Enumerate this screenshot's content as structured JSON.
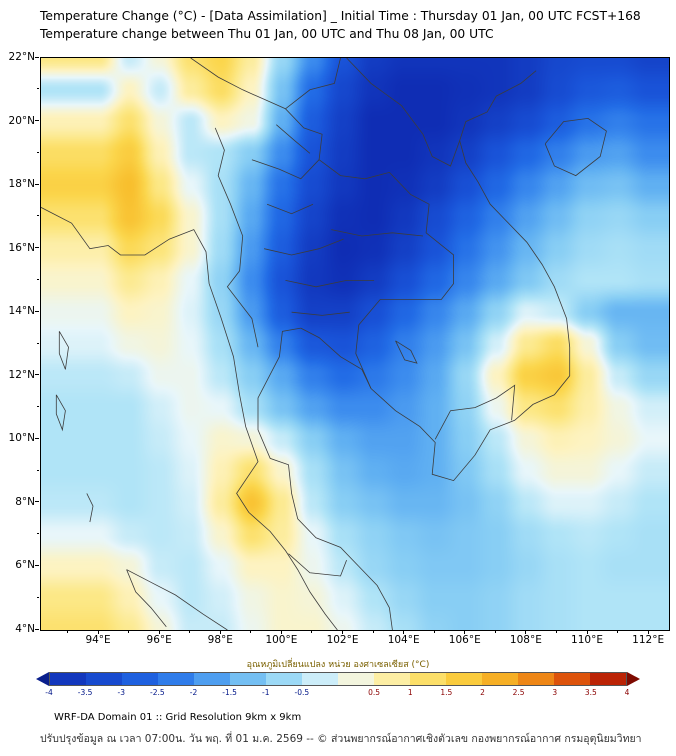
{
  "header": {
    "title_line1": "Temperature Change (°C) - [Data Assimilation] _ Initial Time : Thursday 01 Jan, 00 UTC FCST+168",
    "title_line2": "Temperature change between Thu 01 Jan, 00 UTC and Thu 08 Jan, 00 UTC"
  },
  "footer": {
    "line1": "WRF-DA Domain 01 :: Grid Resolution 9km x 9km",
    "line2": "ปรับปรุงข้อมูล ณ เวลา 07:00น. วัน พฤ. ที่ 01 ม.ค. 2569 -- © ส่วนพยากรณ์อากาศเชิงตัวเลข กองพยากรณ์อากาศ กรมอุตุนิยมวิทยา"
  },
  "chart_data": {
    "type": "heatmap",
    "title": "Temperature change between Thu 01 Jan, 00 UTC and Thu 08 Jan, 00 UTC",
    "xlabel": "",
    "ylabel": "",
    "lon_range": [
      92.1,
      112.65
    ],
    "lat_range": [
      4,
      22
    ],
    "x_tick_values": [
      94,
      96,
      98,
      100,
      102,
      104,
      106,
      108,
      110,
      112
    ],
    "x_tick_labels": [
      "94°E",
      "96°E",
      "98°E",
      "100°E",
      "102°E",
      "104°E",
      "106°E",
      "108°E",
      "110°E",
      "112°E"
    ],
    "y_tick_values": [
      22,
      20,
      18,
      16,
      14,
      12,
      10,
      8,
      6,
      4
    ],
    "y_tick_labels": [
      "22°N",
      "20°N",
      "18°N",
      "16°N",
      "14°N",
      "12°N",
      "10°N",
      "8°N",
      "6°N",
      "4°N"
    ],
    "grid": {
      "lons": [
        94,
        95,
        96,
        97,
        98,
        99,
        100,
        101,
        102,
        103,
        104,
        105,
        106,
        107,
        108,
        109,
        110,
        111,
        112
      ],
      "lats": [
        22,
        21,
        20,
        19,
        18,
        17,
        16,
        15,
        14,
        13,
        12,
        11,
        10,
        9,
        8,
        7,
        6,
        5,
        4
      ],
      "values": [
        [
          1.0,
          -0.3,
          0.3,
          1.2,
          1.5,
          0.8,
          -0.8,
          -2.0,
          -3.0,
          -3.6,
          -3.8,
          -3.8,
          -3.8,
          -3.8,
          -3.6,
          -3.3,
          -3.2,
          -3.2,
          -3.4
        ],
        [
          -0.5,
          0.5,
          -0.3,
          0.8,
          1.3,
          0.5,
          -1.2,
          -2.5,
          -3.3,
          -3.8,
          -4.0,
          -4.0,
          -3.9,
          -3.8,
          -3.6,
          -3.2,
          -2.9,
          -2.8,
          -3.0
        ],
        [
          0.6,
          1.2,
          0.3,
          -0.4,
          0.5,
          0.2,
          -1.5,
          -2.8,
          -3.5,
          -4.0,
          -4.0,
          -4.0,
          -3.8,
          -3.5,
          -3.2,
          -2.8,
          -2.4,
          -2.2,
          -2.4
        ],
        [
          1.3,
          1.7,
          0.6,
          -0.4,
          -0.5,
          -1.0,
          -2.0,
          -3.0,
          -3.6,
          -4.0,
          -4.0,
          -3.8,
          -3.5,
          -3.0,
          -2.6,
          -2.2,
          -1.8,
          -1.7,
          -2.0
        ],
        [
          1.6,
          2.0,
          1.0,
          0.0,
          -0.6,
          -1.4,
          -2.4,
          -3.2,
          -3.7,
          -4.0,
          -3.9,
          -3.6,
          -3.1,
          -2.6,
          -2.1,
          -1.7,
          -1.3,
          -1.2,
          -1.5
        ],
        [
          1.2,
          1.9,
          1.4,
          0.4,
          -0.6,
          -1.6,
          -2.6,
          -3.4,
          -3.9,
          -4.0,
          -3.7,
          -3.2,
          -2.7,
          -2.2,
          -1.7,
          -1.3,
          -0.9,
          -0.8,
          -1.0
        ],
        [
          0.7,
          1.4,
          1.1,
          0.4,
          -0.7,
          -1.8,
          -2.8,
          -3.6,
          -4.0,
          -3.9,
          -3.5,
          -3.0,
          -2.4,
          -1.9,
          -1.4,
          -1.0,
          -0.7,
          -0.6,
          -0.7
        ],
        [
          0.4,
          0.9,
          0.6,
          0.0,
          -0.9,
          -2.0,
          -3.0,
          -3.7,
          -3.9,
          -3.6,
          -3.1,
          -2.6,
          -2.1,
          -1.6,
          -1.1,
          -0.7,
          -0.5,
          -0.5,
          -0.6
        ],
        [
          0.1,
          0.5,
          0.4,
          -0.1,
          -0.8,
          -1.8,
          -2.8,
          -3.5,
          -3.5,
          -3.1,
          -2.6,
          -2.1,
          -1.6,
          -0.9,
          -0.1,
          -0.3,
          -1.0,
          -1.4,
          -1.4
        ],
        [
          -0.1,
          0.2,
          0.3,
          0.0,
          -0.6,
          -1.4,
          -2.2,
          -2.9,
          -3.0,
          -2.7,
          -2.2,
          -1.8,
          -1.2,
          -0.2,
          0.9,
          1.3,
          0.3,
          -1.0,
          -1.3
        ],
        [
          -0.4,
          -0.3,
          0.1,
          0.1,
          -0.4,
          -1.0,
          -1.6,
          -2.2,
          -2.5,
          -2.3,
          -2.0,
          -1.6,
          -0.8,
          0.5,
          1.6,
          1.8,
          0.8,
          -0.3,
          -0.8
        ],
        [
          -0.5,
          -0.5,
          -0.2,
          0.1,
          0.0,
          -0.6,
          -1.2,
          -1.7,
          -2.0,
          -2.0,
          -1.8,
          -1.5,
          -0.9,
          0.1,
          1.0,
          1.2,
          0.7,
          0.2,
          -0.2
        ],
        [
          -0.5,
          -0.5,
          -0.3,
          0.0,
          0.4,
          0.3,
          -0.3,
          -1.0,
          -1.5,
          -1.7,
          -1.7,
          -1.5,
          -1.0,
          -0.4,
          0.3,
          0.6,
          0.5,
          0.3,
          0.0
        ],
        [
          -0.5,
          -0.5,
          -0.4,
          -0.1,
          0.6,
          1.2,
          0.4,
          -0.6,
          -1.2,
          -1.5,
          -1.6,
          -1.5,
          -1.1,
          -0.6,
          0.0,
          0.3,
          0.3,
          0.0,
          -0.3
        ],
        [
          -0.4,
          -0.5,
          -0.4,
          -0.2,
          0.8,
          1.9,
          0.9,
          -0.4,
          -1.0,
          -1.2,
          -1.4,
          -1.4,
          -1.2,
          -0.9,
          -0.4,
          -0.1,
          -0.1,
          -0.3,
          -0.5
        ],
        [
          0.0,
          -0.3,
          -0.4,
          -0.3,
          0.4,
          1.2,
          0.8,
          0.0,
          -0.6,
          -0.9,
          -1.1,
          -1.2,
          -1.1,
          -1.0,
          -0.7,
          -0.5,
          -0.4,
          -0.5,
          -0.6
        ],
        [
          0.5,
          0.3,
          -0.3,
          -0.4,
          0.0,
          0.5,
          0.5,
          0.1,
          -0.4,
          -0.8,
          -1.0,
          -1.1,
          -1.1,
          -1.0,
          -0.8,
          -0.6,
          -0.5,
          -0.6,
          -0.6
        ],
        [
          1.0,
          0.6,
          0.0,
          -0.4,
          -0.2,
          0.2,
          0.4,
          0.3,
          -0.1,
          -0.5,
          -0.8,
          -1.0,
          -1.0,
          -0.9,
          -0.7,
          -0.6,
          -0.5,
          -0.5,
          -0.5
        ],
        [
          1.2,
          0.9,
          0.3,
          -0.3,
          -0.3,
          0.1,
          0.4,
          0.4,
          0.1,
          -0.3,
          -0.6,
          -0.9,
          -1.0,
          -0.9,
          -0.7,
          -0.6,
          -0.5,
          -0.5,
          -0.5
        ]
      ]
    },
    "colormap": {
      "values": [
        -4,
        -3.5,
        -3,
        -2.5,
        -2,
        -1.5,
        -1,
        -0.5,
        0,
        0.5,
        1,
        1.5,
        2,
        2.5,
        3,
        3.5,
        4
      ],
      "colors": [
        "#0f2db4",
        "#1440c6",
        "#1953d8",
        "#226ce6",
        "#3c8cee",
        "#60b0f2",
        "#88cef4",
        "#b0e4f7",
        "#e8f6fa",
        "#fdf3c2",
        "#fce886",
        "#fbd64c",
        "#f8bf2e",
        "#f39e1c",
        "#e96d0f",
        "#d13907",
        "#a40d03"
      ]
    },
    "colorbar": {
      "label": "อุณหภูมิเปลี่ยนแปลง หน่วย องศาเซลเซียส (°C)",
      "tick_values": [
        -4,
        -3.5,
        -3,
        -2.5,
        -2,
        -1.5,
        -1,
        -0.5,
        0.5,
        1,
        1.5,
        2,
        2.5,
        3,
        3.5,
        4
      ],
      "tick_labels": [
        "-4",
        "-3.5",
        "-3",
        "-2.5",
        "-2",
        "-1.5",
        "-1",
        "-0.5",
        "0.5",
        "1",
        "1.5",
        "2",
        "2.5",
        "3",
        "3.5",
        "4"
      ],
      "negative_tick_color": "#001688",
      "positive_tick_color": "#8a0000",
      "left_arrow_color": "#0a1f8c",
      "right_arrow_color": "#7e0a00"
    },
    "borders": [
      [
        [
          92.1,
          17.3
        ],
        [
          93.1,
          16.8
        ],
        [
          93.7,
          16.0
        ],
        [
          94.3,
          16.1
        ],
        [
          94.7,
          15.8
        ],
        [
          95.5,
          15.8
        ],
        [
          96.3,
          16.3
        ],
        [
          97.1,
          16.6
        ],
        [
          97.5,
          15.9
        ],
        [
          97.6,
          14.9
        ],
        [
          98.0,
          13.8
        ],
        [
          98.4,
          12.6
        ],
        [
          98.6,
          11.4
        ],
        [
          98.8,
          10.4
        ],
        [
          99.2,
          9.3
        ],
        [
          98.5,
          8.3
        ],
        [
          98.9,
          7.7
        ],
        [
          99.6,
          7.1
        ],
        [
          100.1,
          6.5
        ],
        [
          100.5,
          5.9
        ],
        [
          100.9,
          5.2
        ],
        [
          101.4,
          4.5
        ],
        [
          101.8,
          4.0
        ]
      ],
      [
        [
          100.6,
          13.5
        ],
        [
          100.0,
          13.4
        ],
        [
          99.9,
          12.6
        ],
        [
          99.2,
          11.3
        ],
        [
          99.2,
          10.3
        ],
        [
          99.6,
          9.4
        ],
        [
          100.2,
          9.2
        ],
        [
          100.3,
          8.3
        ],
        [
          100.5,
          7.5
        ],
        [
          101.1,
          6.9
        ],
        [
          101.9,
          6.6
        ],
        [
          102.5,
          6.0
        ],
        [
          103.1,
          5.4
        ],
        [
          103.5,
          4.7
        ],
        [
          103.6,
          4.0
        ]
      ],
      [
        [
          100.6,
          13.5
        ],
        [
          101.2,
          13.2
        ],
        [
          101.9,
          12.6
        ],
        [
          102.6,
          12.2
        ],
        [
          102.9,
          11.6
        ],
        [
          103.7,
          10.9
        ],
        [
          104.5,
          10.4
        ],
        [
          105.0,
          9.9
        ],
        [
          104.9,
          8.9
        ],
        [
          105.6,
          8.7
        ],
        [
          106.3,
          9.5
        ],
        [
          106.8,
          10.3
        ],
        [
          107.6,
          10.6
        ],
        [
          108.2,
          11.1
        ],
        [
          108.9,
          11.4
        ],
        [
          109.4,
          12.0
        ],
        [
          109.4,
          12.9
        ],
        [
          109.3,
          13.8
        ],
        [
          108.9,
          14.8
        ],
        [
          108.5,
          15.5
        ],
        [
          108.0,
          16.2
        ],
        [
          107.3,
          16.9
        ],
        [
          106.8,
          17.4
        ],
        [
          106.4,
          18.1
        ],
        [
          106.0,
          18.7
        ],
        [
          105.8,
          19.4
        ],
        [
          106.0,
          20.0
        ],
        [
          106.7,
          20.3
        ],
        [
          107.0,
          20.8
        ],
        [
          107.8,
          21.2
        ],
        [
          108.3,
          21.6
        ]
      ],
      [
        [
          100.1,
          20.4
        ],
        [
          100.7,
          19.8
        ],
        [
          101.3,
          19.6
        ],
        [
          101.2,
          18.8
        ],
        [
          101.9,
          18.3
        ],
        [
          102.7,
          18.2
        ],
        [
          103.5,
          18.4
        ],
        [
          104.2,
          17.7
        ],
        [
          104.8,
          17.4
        ],
        [
          104.7,
          16.5
        ],
        [
          105.6,
          15.8
        ],
        [
          105.6,
          14.9
        ],
        [
          105.2,
          14.4
        ],
        [
          104.2,
          14.4
        ],
        [
          103.2,
          14.4
        ],
        [
          102.5,
          13.6
        ],
        [
          102.4,
          12.7
        ],
        [
          102.9,
          11.6
        ]
      ],
      [
        [
          97.8,
          19.8
        ],
        [
          98.1,
          19.1
        ],
        [
          97.9,
          18.3
        ],
        [
          98.3,
          17.4
        ],
        [
          98.7,
          16.4
        ],
        [
          98.6,
          15.3
        ],
        [
          98.2,
          14.8
        ],
        [
          99.0,
          13.8
        ],
        [
          99.2,
          12.9
        ]
      ],
      [
        [
          97.0,
          22.0
        ],
        [
          97.9,
          21.4
        ],
        [
          98.7,
          21.0
        ],
        [
          99.4,
          20.7
        ],
        [
          100.1,
          20.4
        ],
        [
          100.9,
          21.0
        ],
        [
          101.7,
          21.2
        ],
        [
          101.9,
          22.0
        ]
      ],
      [
        [
          102.1,
          22.0
        ],
        [
          102.9,
          21.2
        ],
        [
          103.9,
          20.5
        ],
        [
          104.6,
          19.6
        ],
        [
          104.9,
          18.9
        ],
        [
          105.5,
          18.6
        ],
        [
          105.8,
          19.4
        ]
      ],
      [
        [
          108.6,
          19.3
        ],
        [
          109.2,
          20.0
        ],
        [
          110.0,
          20.1
        ],
        [
          110.6,
          19.7
        ],
        [
          110.4,
          18.9
        ],
        [
          109.6,
          18.3
        ],
        [
          108.9,
          18.6
        ],
        [
          108.6,
          19.3
        ]
      ],
      [
        [
          94.9,
          5.9
        ],
        [
          95.7,
          5.5
        ],
        [
          96.5,
          5.1
        ],
        [
          97.4,
          4.5
        ],
        [
          98.2,
          4.0
        ]
      ],
      [
        [
          94.9,
          5.9
        ],
        [
          95.2,
          5.2
        ],
        [
          95.7,
          4.7
        ],
        [
          96.2,
          4.1
        ]
      ],
      [
        [
          92.7,
          13.4
        ],
        [
          93.0,
          12.9
        ],
        [
          92.9,
          12.2
        ],
        [
          92.7,
          12.7
        ],
        [
          92.7,
          13.4
        ]
      ],
      [
        [
          92.6,
          11.4
        ],
        [
          92.9,
          10.9
        ],
        [
          92.8,
          10.3
        ],
        [
          92.6,
          10.8
        ],
        [
          92.6,
          11.4
        ]
      ],
      [
        [
          93.6,
          8.3
        ],
        [
          93.8,
          7.9
        ],
        [
          93.7,
          7.4
        ]
      ],
      [
        [
          103.7,
          13.1
        ],
        [
          104.2,
          12.8
        ],
        [
          104.4,
          12.4
        ],
        [
          104.0,
          12.5
        ],
        [
          103.7,
          13.1
        ]
      ],
      [
        [
          105.0,
          10.0
        ],
        [
          105.5,
          10.9
        ],
        [
          106.3,
          11.0
        ],
        [
          107.0,
          11.3
        ],
        [
          107.6,
          11.7
        ],
        [
          107.5,
          10.6
        ]
      ],
      [
        [
          100.2,
          6.4
        ],
        [
          100.9,
          5.8
        ],
        [
          101.9,
          5.7
        ],
        [
          102.1,
          6.2
        ]
      ],
      [
        [
          99.0,
          18.8
        ],
        [
          99.9,
          18.5
        ],
        [
          100.6,
          18.2
        ],
        [
          101.2,
          18.8
        ]
      ],
      [
        [
          99.5,
          17.4
        ],
        [
          100.3,
          17.1
        ],
        [
          101.0,
          17.4
        ]
      ],
      [
        [
          99.4,
          16.0
        ],
        [
          100.3,
          15.8
        ],
        [
          101.2,
          16.0
        ],
        [
          102.0,
          16.3
        ]
      ],
      [
        [
          100.1,
          15.0
        ],
        [
          101.1,
          14.8
        ],
        [
          102.1,
          15.0
        ],
        [
          103.0,
          15.0
        ]
      ],
      [
        [
          101.6,
          16.6
        ],
        [
          102.6,
          16.4
        ],
        [
          103.6,
          16.5
        ],
        [
          104.6,
          16.4
        ]
      ],
      [
        [
          100.3,
          14.0
        ],
        [
          101.3,
          13.9
        ],
        [
          102.2,
          14.0
        ]
      ],
      [
        [
          99.8,
          19.9
        ],
        [
          100.4,
          19.4
        ],
        [
          100.9,
          19.0
        ]
      ]
    ]
  }
}
